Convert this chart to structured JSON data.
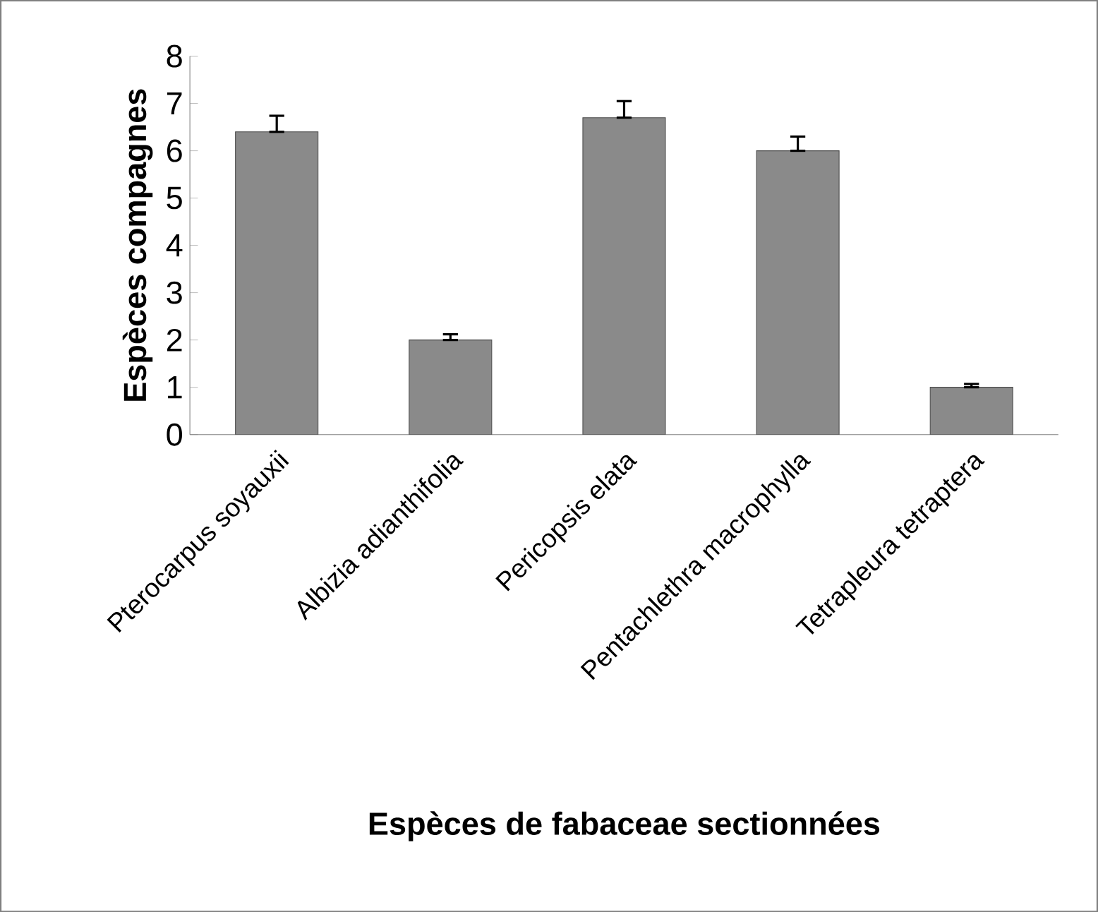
{
  "chart_data": {
    "type": "bar",
    "xlabel": "Espèces de fabaceae sectionnées",
    "ylabel": "Espèces compagnes",
    "categories": [
      "Pterocarpus soyauxii",
      "Albizia adianthifolia",
      "Pericopsis elata",
      "Pentachlethra macrophylla",
      "Tetrapleura tetraptera"
    ],
    "values": [
      6.4,
      2.0,
      6.7,
      6.0,
      1.0
    ],
    "errors": [
      [
        6.4,
        6.74
      ],
      [
        2.0,
        2.12
      ],
      [
        6.7,
        7.05
      ],
      [
        6.0,
        6.3
      ],
      [
        1.0,
        1.07
      ]
    ],
    "color": "#8a8a8a",
    "ylim": [
      0,
      8
    ],
    "yticks": [
      0,
      1,
      2,
      3,
      4,
      5,
      6,
      7,
      8
    ],
    "grid": false
  }
}
